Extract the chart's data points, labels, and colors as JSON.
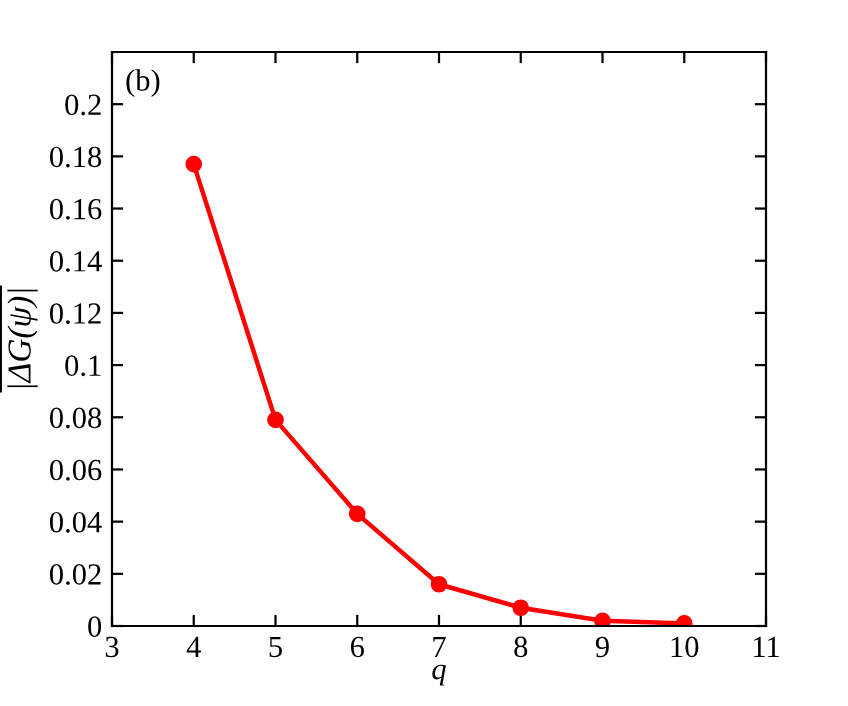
{
  "chart_data": {
    "type": "line",
    "xlabel": "q",
    "ylabel": "|ΔG(ψ)|",
    "annotations": [
      "(b)"
    ],
    "x": [
      4,
      5,
      6,
      7,
      8,
      9,
      10
    ],
    "series": [
      {
        "color": "#ff0000",
        "values": [
          0.177,
          0.079,
          0.043,
          0.016,
          0.007,
          0.002,
          0.001
        ]
      }
    ],
    "marker": "circle",
    "line_style": "solid",
    "xlim": [
      3,
      11
    ],
    "xticks": [
      3,
      4,
      5,
      6,
      7,
      8,
      9,
      10,
      11
    ],
    "ylim": [
      0,
      0.22
    ],
    "yticks": [
      0,
      0.02,
      0.04,
      0.06,
      0.08,
      0.1,
      0.12,
      0.14,
      0.16,
      0.18,
      0.2
    ],
    "grid": false
  }
}
